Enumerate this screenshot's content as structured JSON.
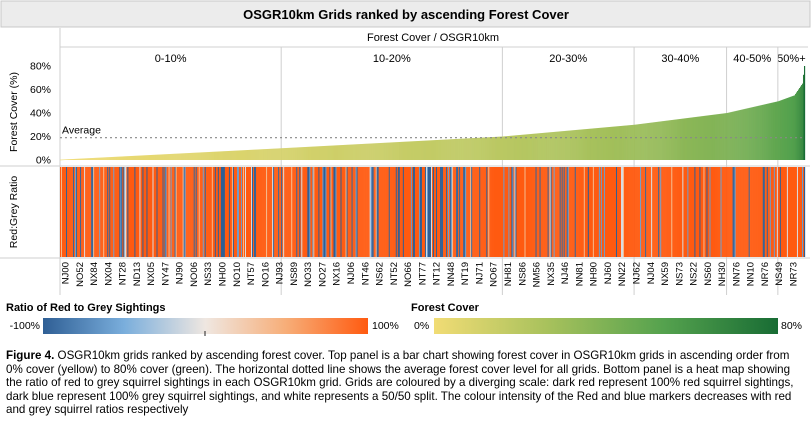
{
  "title": "OSGR10km Grids ranked by ascending Forest Cover",
  "header_label": "Forest Cover  /  OSGR10km",
  "bands": [
    {
      "label": "0-10%",
      "start": 0,
      "end": 220
    },
    {
      "label": "10-20%",
      "start": 220,
      "end": 440
    },
    {
      "label": "20-30%",
      "start": 440,
      "end": 571
    },
    {
      "label": "30-40%",
      "start": 571,
      "end": 663
    },
    {
      "label": "40-50%",
      "start": 663,
      "end": 714
    },
    {
      "label": "50%+",
      "start": 714,
      "end": 741
    }
  ],
  "top_panel": {
    "ylabel": "Forest Cover (%)",
    "yticks": [
      "0%",
      "20%",
      "40%",
      "60%",
      "80%"
    ],
    "ylim": [
      0,
      85
    ],
    "average_label": "Average",
    "average_value": 19
  },
  "bottom_panel": {
    "ylabel": "Red:Grey Ratio"
  },
  "x_labels": [
    "NJ00",
    "NO52",
    "NX84",
    "NX04",
    "NT28",
    "ND13",
    "NX05",
    "NY47",
    "NJ90",
    "NO06",
    "NS33",
    "NH00",
    "NO10",
    "NT57",
    "NO16",
    "NJ93",
    "NS89",
    "NO33",
    "NO27",
    "NX16",
    "NJ06",
    "NT46",
    "NS62",
    "NT52",
    "NO66",
    "NT77",
    "NT12",
    "NN48",
    "NT19",
    "NJ71",
    "NO67",
    "NH81",
    "NS86",
    "NM56",
    "NX35",
    "NJ46",
    "NN81",
    "NH90",
    "NJ60",
    "NN22",
    "NJ62",
    "NJ04",
    "NX59",
    "NS73",
    "NS22",
    "NS60",
    "NH30",
    "NN76",
    "NN10",
    "NR76",
    "NS49",
    "NR73"
  ],
  "chart_data": {
    "type": "bar",
    "title": "OSGR10km Grids ranked by ascending Forest Cover",
    "xlabel": "Forest Cover  /  OSGR10km",
    "ylabel": "Forest Cover (%)",
    "ylim": [
      0,
      85
    ],
    "grid_count": 741,
    "series_shape": "ascending; roughly 0% at first grid, ~10% at grid 220, ~20% at grid 440, ~30% at grid 571, ~40% at grid 663, ~50% at grid 714, rising to ~80% at last grid",
    "profile": [
      [
        0,
        0.3
      ],
      [
        220,
        10
      ],
      [
        440,
        20
      ],
      [
        571,
        30
      ],
      [
        663,
        40
      ],
      [
        714,
        50
      ],
      [
        730,
        55
      ],
      [
        738,
        65
      ],
      [
        740,
        80
      ]
    ],
    "average": 19,
    "heatmap": {
      "type": "heatmap",
      "ylabel": "Red:Grey Ratio",
      "scale": [
        -100,
        100
      ],
      "note": "one vertical stripe per grid; mostly red (+100%), with scattered blue (-100%) and pale intermediate stripes"
    }
  },
  "legend_ratio": {
    "title": "Ratio of Red to Grey Sightings",
    "min_label": "-100%",
    "max_label": "100%",
    "colors": [
      "#2f5f95",
      "#7aaedc",
      "#efe7e1",
      "#f7ad77",
      "#ff5a10"
    ]
  },
  "legend_forest": {
    "title": "Forest Cover",
    "min_label": "0%",
    "max_label": "80%",
    "colors": [
      "#f1dc75",
      "#a7c15c",
      "#55a24e",
      "#186c34"
    ]
  },
  "caption": {
    "prefix": "Figure 4.",
    "text": " OSGR10km grids ranked by ascending forest cover. Top panel is a bar chart showing forest cover in OSGR10km grids in ascending order from 0% cover (yellow) to 80% cover (green). The horizontal dotted line shows the average forest cover level for all grids. Bottom panel is a heat map showing the ratio of red to grey squirrel sightings in each OSGR10km grid. Grids are coloured by a diverging scale: dark red represent 100% red squirrel sightings, dark blue represent 100% grey squirrel sightings, and white represents a 50/50 split. The colour intensity of the Red and blue markers decreases with red and grey squirrel ratios respectively"
  }
}
